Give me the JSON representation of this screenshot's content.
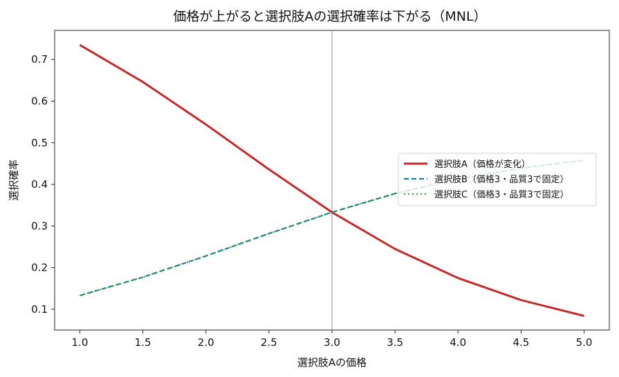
{
  "chart_data": {
    "type": "line",
    "title": "価格が上がると選択肢Aの選択確率は下がる（MNL）",
    "xlabel": "選択肢Aの価格",
    "ylabel": "選択確率",
    "xlim": [
      0.8,
      5.2
    ],
    "ylim": [
      0.05,
      0.77
    ],
    "xticks": [
      "1.0",
      "1.5",
      "2.0",
      "2.5",
      "3.0",
      "3.5",
      "4.0",
      "4.5",
      "5.0"
    ],
    "yticks": [
      "0.1",
      "0.2",
      "0.3",
      "0.4",
      "0.5",
      "0.6",
      "0.7"
    ],
    "vline_x": 3.0,
    "grid": false,
    "legend_position": "center-right",
    "x": [
      1.0,
      1.5,
      2.0,
      2.5,
      3.0,
      3.5,
      4.0,
      4.5,
      5.0
    ],
    "series": [
      {
        "name": "選択肢A（価格が変化）",
        "color": "#c62828",
        "style": "solid",
        "values": [
          0.735,
          0.646,
          0.544,
          0.436,
          0.333,
          0.245,
          0.175,
          0.122,
          0.084
        ]
      },
      {
        "name": "選択肢B（価格3・品質3で固定）",
        "color": "#1f77b4",
        "style": "dashed",
        "values": [
          0.133,
          0.177,
          0.228,
          0.282,
          0.333,
          0.378,
          0.413,
          0.439,
          0.458
        ]
      },
      {
        "name": "選択肢C（価格3・品質3で固定）",
        "color": "#2ca02c",
        "style": "dotted",
        "values": [
          0.133,
          0.177,
          0.228,
          0.282,
          0.333,
          0.378,
          0.413,
          0.439,
          0.458
        ]
      }
    ]
  }
}
